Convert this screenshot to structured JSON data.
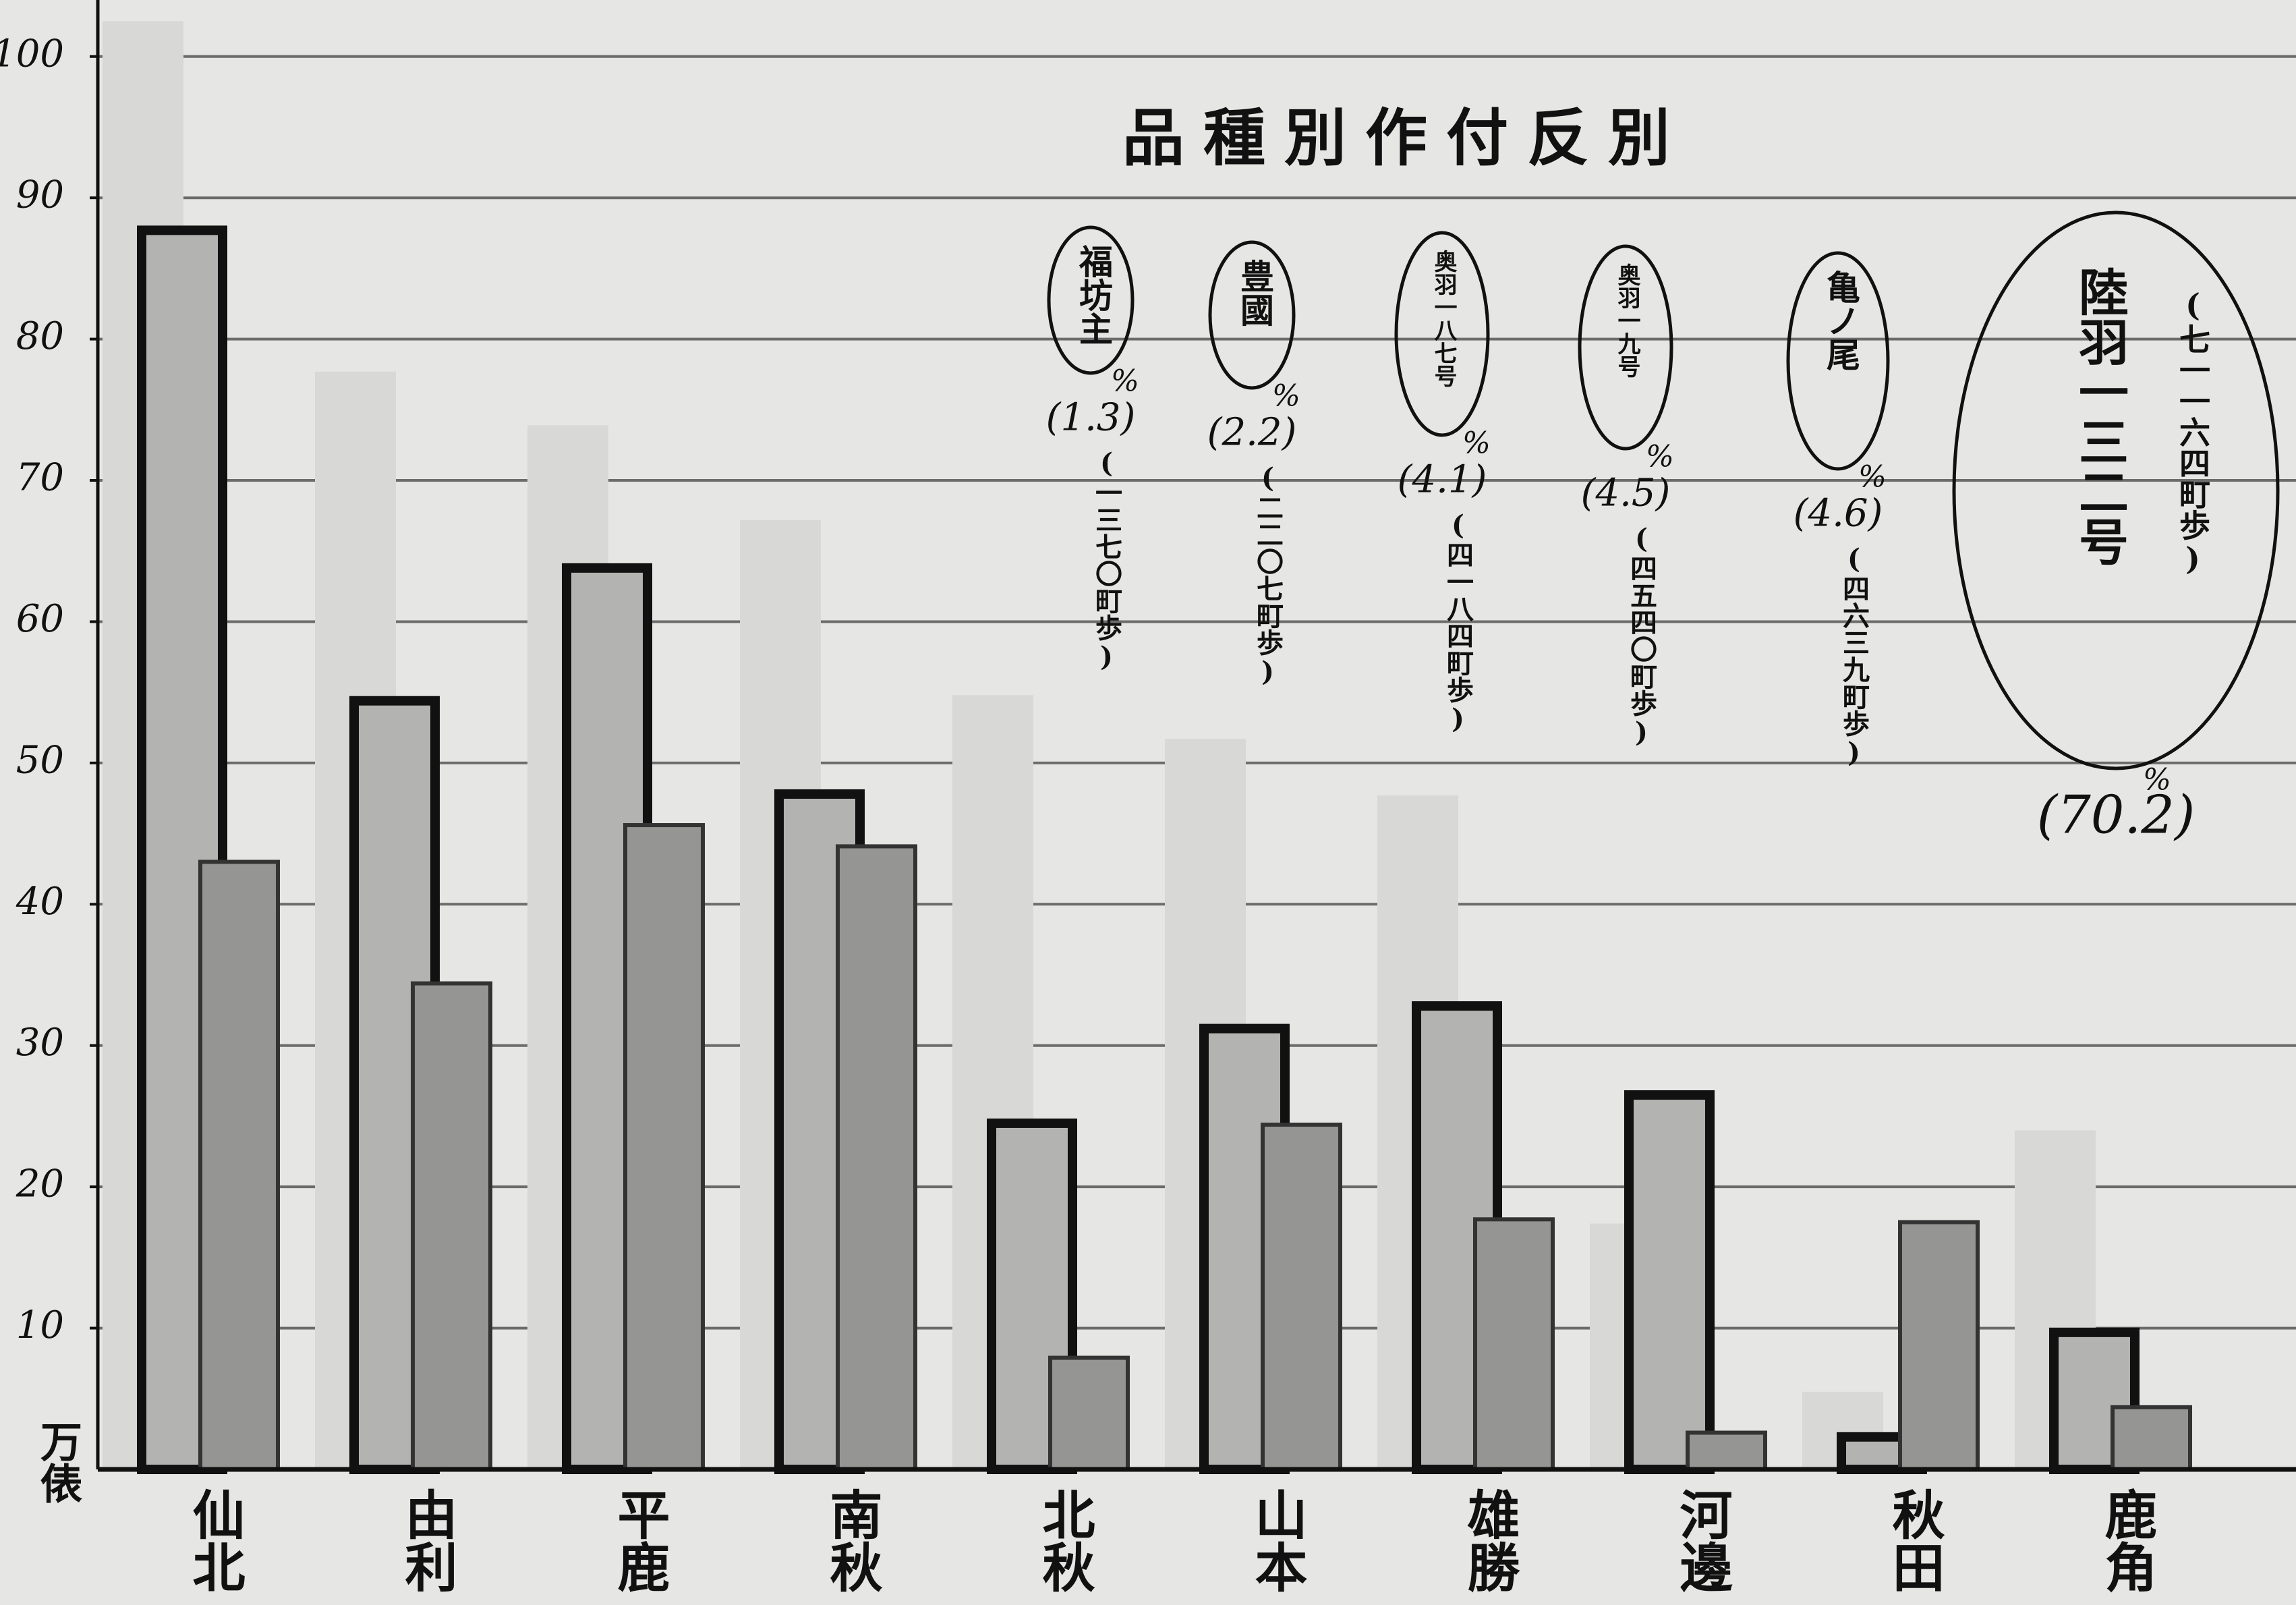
{
  "chart_data": {
    "type": "bar",
    "title": "品種別作付反別",
    "y_unit": "万俵",
    "categories": [
      "仙北",
      "由利",
      "平鹿",
      "南秋",
      "北秋",
      "山本",
      "雄勝",
      "河邊",
      "秋田",
      "鹿角"
    ],
    "series": [
      {
        "color": "#d8d8d6",
        "values": [
          102.5,
          77.7,
          73.9,
          67.2,
          54.8,
          51.7,
          47.7,
          17.4,
          5.5,
          24
        ]
      },
      {
        "color": "#b3b3b1",
        "values": [
          87.7,
          54.4,
          63.8,
          47.8,
          24.5,
          31.2,
          32.8,
          26.5,
          2.3,
          9.7
        ]
      },
      {
        "color": "#959593",
        "values": [
          43,
          34.4,
          45.6,
          44.1,
          7.9,
          24.4,
          17.7,
          2.6,
          17.5,
          4.4
        ]
      }
    ],
    "ylim": [
      0,
      104
    ],
    "yticks": [
      10,
      20,
      30,
      40,
      50,
      60,
      70,
      80,
      90,
      100
    ],
    "grid": true,
    "annotation_unit": "%",
    "annotations": [
      {
        "name": "福坊主",
        "share": "(1.3)",
        "area": "(一三七〇町歩)"
      },
      {
        "name": "豊國",
        "share": "(2.2)",
        "area": "(二二〇七町歩)"
      },
      {
        "name": "奥羽一八七号",
        "share": "(4.1)",
        "area": "(四一八四町歩)"
      },
      {
        "name": "奥羽一九号",
        "share": "(4.5)",
        "area": "(四五四〇町歩)"
      },
      {
        "name": "亀ノ尾",
        "share": "(4.6)",
        "area": "(四六三九町歩)"
      },
      {
        "name": "陸羽一三二号",
        "share": "(70.2)",
        "area": "(七一一六四町歩)"
      }
    ]
  }
}
